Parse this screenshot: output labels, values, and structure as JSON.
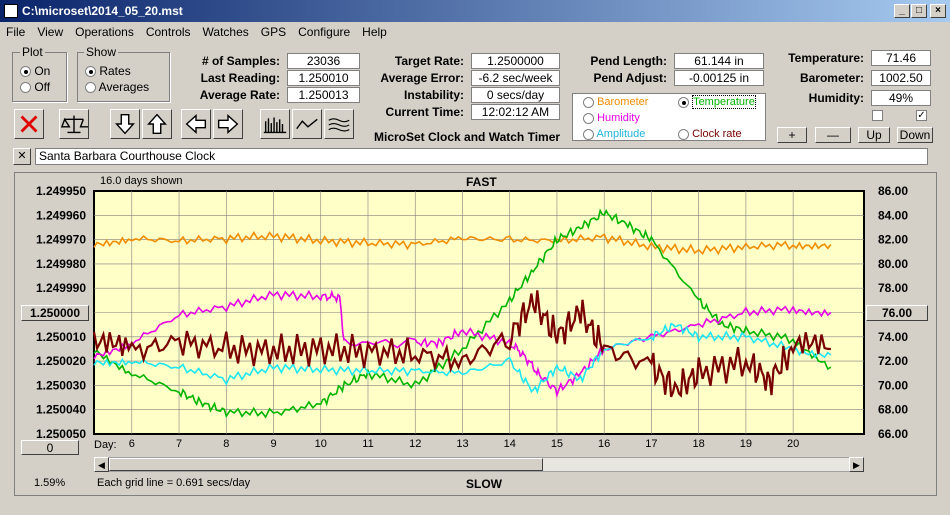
{
  "window": {
    "title": "C:\\microset\\2014_05_20.mst"
  },
  "menu": [
    "File",
    "View",
    "Operations",
    "Controls",
    "Watches",
    "GPS",
    "Configure",
    "Help"
  ],
  "plot_group": {
    "title": "Plot",
    "on": "On",
    "off": "Off",
    "selected": "On"
  },
  "show_group": {
    "title": "Show",
    "rates": "Rates",
    "averages": "Averages",
    "selected": "Rates"
  },
  "stats": {
    "samples_label": "# of Samples:",
    "samples": "23036",
    "last_label": "Last Reading:",
    "last": "1.250010",
    "avg_label": "Average Rate:",
    "avg": "1.250013",
    "target_label": "Target Rate:",
    "target": "1.2500000",
    "avgerr_label": "Average Error:",
    "avgerr": "-6.2 sec/week",
    "instab_label": "Instability:",
    "instab": "0 secs/day",
    "time_label": "Current Time:",
    "time": "12:02:12 AM",
    "pendlen_label": "Pend Length:",
    "pendlen": "61.144 in",
    "pendadj_label": "Pend Adjust:",
    "pendadj": "-0.00125 in",
    "temp_label": "Temperature:",
    "temp": "71.46",
    "baro_label": "Barometer:",
    "baro": "1002.50",
    "hum_label": "Humidity:",
    "hum": "49%"
  },
  "app_caption": "MicroSet Clock and Watch Timer",
  "sensor_select": {
    "barometer": "Barometer",
    "temperature": "Temperature",
    "humidity": "Humidity",
    "amplitude": "Amplitude",
    "clockrate": "Clock rate",
    "selected": "Temperature"
  },
  "sensor_buttons": {
    "plus": "+",
    "minus": "—",
    "up": "Up",
    "down": "Down"
  },
  "clock_name": "Santa Barbara Courthouse Clock",
  "close_x": "✕",
  "colors": {
    "plot_bg": "#ffffc8",
    "barometer": "#f08c00",
    "temperature": "#00b400",
    "humidity": "#e600e6",
    "amplitude": "#1ee6f0",
    "rate": "#780000"
  },
  "chart_data": {
    "type": "line",
    "title": "FAST",
    "bottom_title": "SLOW",
    "days_shown": "16.0 days shown",
    "grid_note": "Each grid line = 0.691 secs/day",
    "xlabel": "Day:",
    "x_ticks": [
      "6",
      "7",
      "8",
      "9",
      "10",
      "11",
      "12",
      "13",
      "14",
      "15",
      "16",
      "17",
      "18",
      "19",
      "20"
    ],
    "x_range": [
      5.2,
      21.5
    ],
    "y_left_ticks": [
      "1.249950",
      "1.249960",
      "1.249970",
      "1.249980",
      "1.249990",
      "1.250000",
      "1.250010",
      "1.250020",
      "1.250030",
      "1.250040",
      "1.250050"
    ],
    "y_left_range": [
      1.24995,
      1.25005
    ],
    "y_left_center": "1.250000",
    "y_right_ticks": [
      "86.00",
      "84.00",
      "82.00",
      "80.00",
      "78.00",
      "76.00",
      "74.00",
      "72.00",
      "70.00",
      "68.00",
      "66.00"
    ],
    "y_right_range": [
      66,
      86
    ],
    "y_right_center": "76.00",
    "left_bottom_button": "0",
    "percent": "1.59%",
    "series": [
      {
        "name": "Barometer",
        "axis": "right",
        "x": [
          5.2,
          6,
          7,
          8,
          9,
          10,
          11,
          12,
          13,
          14,
          15,
          16,
          17,
          18,
          19,
          20,
          20.8
        ],
        "y": [
          81.7,
          82.1,
          81.9,
          82.1,
          82.3,
          81.9,
          81.7,
          81.6,
          82.1,
          82.0,
          81.9,
          82.2,
          81.4,
          81.1,
          81.4,
          81.6,
          81.6
        ]
      },
      {
        "name": "Temperature",
        "axis": "right",
        "x": [
          5.2,
          6,
          7,
          7.5,
          8,
          9,
          10,
          10.5,
          11,
          12,
          13,
          14,
          14.5,
          15,
          15.5,
          16,
          16.5,
          17,
          18,
          18.5,
          19,
          20,
          20.8
        ],
        "y": [
          73.0,
          71.0,
          69.5,
          68.5,
          67.8,
          67.7,
          68.5,
          70.0,
          71.0,
          70.0,
          73.0,
          77.0,
          79.5,
          82.0,
          83.0,
          84.2,
          83.2,
          82.0,
          77.0,
          75.0,
          74.5,
          73.8,
          71.5
        ]
      },
      {
        "name": "Humidity",
        "axis": "right",
        "x": [
          5.2,
          6,
          7,
          8,
          9,
          10,
          10.4,
          10.5,
          12,
          12.5,
          13,
          14,
          14.3,
          14.6,
          15,
          15.5,
          16,
          17,
          18,
          19,
          20,
          20.8
        ],
        "y": [
          72.5,
          73.5,
          75.8,
          76.5,
          77.5,
          77.3,
          77.3,
          73.5,
          73.5,
          73.5,
          74.5,
          73.5,
          72.5,
          71.0,
          69.5,
          71.0,
          73.0,
          74.0,
          75.0,
          76.0,
          76.3,
          76.0
        ]
      },
      {
        "name": "Amplitude",
        "axis": "right",
        "x": [
          5.2,
          6,
          7,
          8,
          9,
          10,
          11,
          12,
          13,
          14,
          14.5,
          15,
          15.5,
          16,
          17,
          17.5,
          18,
          19,
          20,
          20.8
        ],
        "y": [
          72.0,
          72.0,
          71.5,
          70.5,
          71.5,
          71.3,
          71.2,
          71.2,
          71.0,
          72.0,
          69.5,
          71.5,
          70.5,
          73.0,
          74.0,
          75.0,
          74.0,
          74.0,
          73.0,
          72.5
        ]
      },
      {
        "name": "Clock rate",
        "axis": "left",
        "x": [
          5.2,
          6,
          7,
          8,
          9,
          10,
          11,
          12,
          13,
          14,
          14.5,
          15,
          15.5,
          16,
          17,
          17.5,
          18,
          19,
          19.5,
          20,
          20.8
        ],
        "y": [
          1.250014,
          1.250016,
          1.250012,
          1.250015,
          1.250016,
          1.250015,
          1.250016,
          1.250017,
          1.25002,
          1.25001,
          1.249995,
          1.25001,
          1.25,
          1.250015,
          1.250022,
          1.250032,
          1.250025,
          1.25002,
          1.250028,
          1.250015,
          1.250015
        ]
      }
    ]
  }
}
